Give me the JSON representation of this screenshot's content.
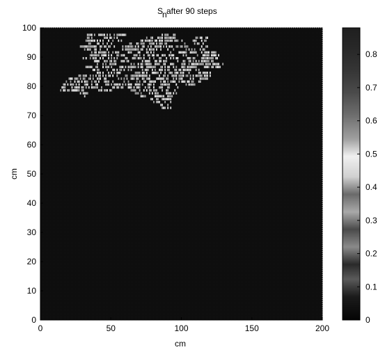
{
  "chart_data": {
    "type": "heatmap",
    "title": {
      "main": "S",
      "subscript": "n",
      "rest": " after 90 steps"
    },
    "xlabel": "cm",
    "ylabel": "cm",
    "xlim": [
      0,
      200
    ],
    "ylim": [
      0,
      100
    ],
    "x_ticks": [
      0,
      50,
      100,
      150,
      200
    ],
    "y_ticks": [
      0,
      10,
      20,
      30,
      40,
      50,
      60,
      70,
      80,
      90,
      100
    ],
    "x_tick_labels": [
      "0",
      "50",
      "100",
      "150",
      "200"
    ],
    "y_tick_labels": [
      "0",
      "10",
      "20",
      "30",
      "40",
      "50",
      "60",
      "70",
      "80",
      "90",
      "100"
    ],
    "colormap": "gray-colorcube",
    "background_color": "#0e0e0e",
    "colorbar": {
      "lim": [
        0,
        0.88
      ],
      "ticks": [
        0,
        0.1,
        0.2,
        0.3,
        0.4,
        0.5,
        0.6,
        0.7,
        0.8
      ],
      "tick_labels": [
        "0",
        "0.1",
        "0.2",
        "0.3",
        "0.4",
        "0.5",
        "0.6",
        "0.7",
        "0.8"
      ]
    },
    "active_region": {
      "description_rows": [
        {
          "y": 97,
          "x": [
            [
              33,
              60
            ],
            [
              85,
              96
            ]
          ]
        },
        {
          "y": 96,
          "x": [
            [
              33,
              55
            ],
            [
              75,
              95
            ],
            [
              110,
              118
            ]
          ]
        },
        {
          "y": 95,
          "x": [
            [
              32,
              58
            ],
            [
              70,
              100
            ],
            [
              108,
              120
            ]
          ]
        },
        {
          "y": 94,
          "x": [
            [
              34,
              50
            ],
            [
              62,
              90
            ],
            [
              100,
              116
            ]
          ]
        },
        {
          "y": 93,
          "x": [
            [
              28,
              52
            ],
            [
              58,
              104
            ],
            [
              110,
              122
            ]
          ]
        },
        {
          "y": 92,
          "x": [
            [
              30,
              48
            ],
            [
              54,
              96
            ],
            [
              102,
              118
            ]
          ]
        },
        {
          "y": 91,
          "x": [
            [
              36,
              56
            ],
            [
              62,
              80
            ],
            [
              92,
              124
            ]
          ]
        },
        {
          "y": 90,
          "x": [
            [
              34,
              60
            ],
            [
              66,
              104
            ],
            [
              110,
              126
            ]
          ]
        },
        {
          "y": 89,
          "x": [
            [
              30,
              54
            ],
            [
              60,
              98
            ],
            [
              104,
              128
            ]
          ]
        },
        {
          "y": 88,
          "x": [
            [
              36,
              62
            ],
            [
              70,
              122
            ]
          ]
        },
        {
          "y": 87,
          "x": [
            [
              40,
              58
            ],
            [
              64,
              94
            ],
            [
              100,
              130
            ]
          ]
        },
        {
          "y": 86,
          "x": [
            [
              32,
              50
            ],
            [
              56,
              110
            ],
            [
              116,
              128
            ]
          ]
        },
        {
          "y": 85,
          "x": [
            [
              36,
              64
            ],
            [
              70,
              112
            ]
          ]
        },
        {
          "y": 84,
          "x": [
            [
              40,
              58
            ],
            [
              66,
              106
            ],
            [
              112,
              124
            ]
          ]
        },
        {
          "y": 83,
          "x": [
            [
              26,
              54
            ],
            [
              60,
              120
            ]
          ]
        },
        {
          "y": 82,
          "x": [
            [
              20,
              46
            ],
            [
              52,
              100
            ],
            [
              106,
              118
            ]
          ]
        },
        {
          "y": 81,
          "x": [
            [
              18,
              62
            ],
            [
              68,
              114
            ]
          ]
        },
        {
          "y": 80,
          "x": [
            [
              16,
              40
            ],
            [
              46,
              96
            ],
            [
              102,
              110
            ]
          ]
        },
        {
          "y": 79,
          "x": [
            [
              14,
              44
            ],
            [
              50,
              80
            ],
            [
              84,
              100
            ]
          ]
        },
        {
          "y": 78,
          "x": [
            [
              14,
              30
            ],
            [
              36,
              50
            ],
            [
              62,
              96
            ]
          ]
        },
        {
          "y": 77,
          "x": [
            [
              28,
              34
            ],
            [
              66,
              72
            ],
            [
              76,
              96
            ]
          ]
        },
        {
          "y": 76,
          "x": [
            [
              30,
              32
            ],
            [
              70,
              74
            ],
            [
              80,
              94
            ]
          ]
        },
        {
          "y": 75,
          "x": [
            [
              78,
              92
            ]
          ]
        },
        {
          "y": 74,
          "x": [
            [
              80,
              92
            ]
          ]
        },
        {
          "y": 73,
          "x": [
            [
              84,
              92
            ]
          ]
        },
        {
          "y": 72,
          "x": [
            [
              86,
              92
            ]
          ]
        }
      ],
      "value_range": [
        0.55,
        0.8
      ]
    }
  }
}
